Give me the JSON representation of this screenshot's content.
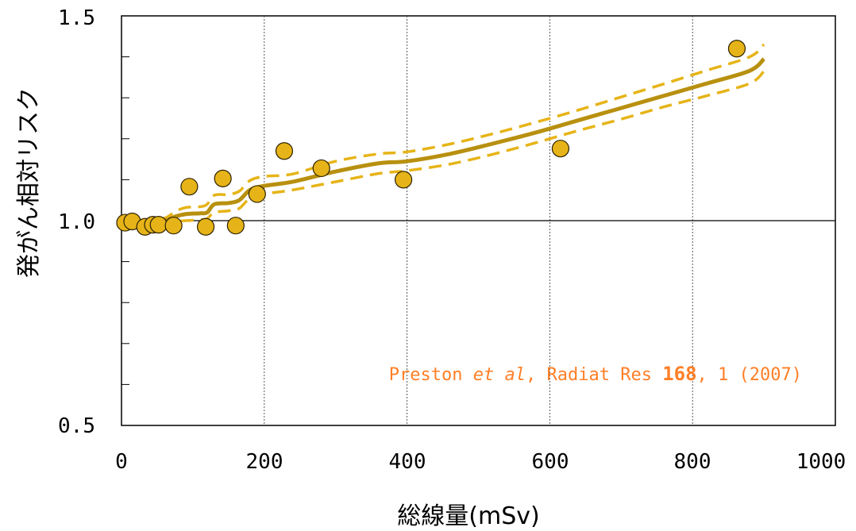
{
  "chart_data": {
    "type": "scatter",
    "xlabel": "総線量(mSv)",
    "ylabel": "発がん相対リスク",
    "xlim": [
      0,
      1000
    ],
    "ylim": [
      0.5,
      1.5
    ],
    "x_ticks": [
      "0",
      "200",
      "400",
      "600",
      "800",
      "1000"
    ],
    "y_ticks": [
      "0.5",
      "1.0",
      "1.5"
    ],
    "y_minor_ticks": [
      0.6,
      0.7,
      0.8,
      0.9,
      1.1,
      1.2,
      1.3,
      1.4
    ],
    "grid": "vertical dashed at 200, 400, 600, 800",
    "reference_line": 1.0,
    "points": {
      "x": [
        5,
        15,
        33,
        44,
        52,
        73,
        95,
        118,
        142,
        160,
        190,
        228,
        280,
        395,
        615,
        862
      ],
      "y": [
        0.995,
        0.998,
        0.985,
        0.99,
        0.99,
        0.988,
        1.083,
        0.985,
        1.103,
        0.988,
        1.065,
        1.17,
        1.128,
        1.1,
        1.176,
        1.42
      ]
    },
    "fit": {
      "x": [
        0,
        30,
        60,
        75,
        90,
        110,
        120,
        130,
        150,
        165,
        180,
        200,
        240,
        300,
        360,
        400,
        460,
        520,
        580,
        640,
        700,
        760,
        820,
        880,
        900
      ],
      "y": [
        0.995,
        0.997,
        1.0,
        1.01,
        1.016,
        1.018,
        1.02,
        1.04,
        1.043,
        1.05,
        1.075,
        1.085,
        1.095,
        1.12,
        1.14,
        1.145,
        1.163,
        1.188,
        1.215,
        1.245,
        1.275,
        1.305,
        1.335,
        1.366,
        1.395
      ]
    },
    "ci_upper": {
      "x": [
        0,
        30,
        60,
        75,
        90,
        110,
        120,
        130,
        150,
        165,
        180,
        200,
        240,
        300,
        360,
        400,
        460,
        520,
        580,
        640,
        700,
        760,
        820,
        880,
        900
      ],
      "y": [
        1.0,
        1.002,
        1.006,
        1.022,
        1.032,
        1.034,
        1.04,
        1.062,
        1.064,
        1.072,
        1.098,
        1.108,
        1.114,
        1.145,
        1.163,
        1.168,
        1.187,
        1.212,
        1.24,
        1.27,
        1.302,
        1.334,
        1.367,
        1.4,
        1.43
      ]
    },
    "ci_lower": {
      "x": [
        0,
        30,
        60,
        75,
        90,
        110,
        120,
        130,
        150,
        165,
        180,
        200,
        240,
        300,
        360,
        400,
        460,
        520,
        580,
        640,
        700,
        760,
        820,
        880,
        900
      ],
      "y": [
        0.99,
        0.992,
        0.995,
        0.998,
        1.0,
        1.002,
        1.005,
        1.02,
        1.024,
        1.03,
        1.055,
        1.065,
        1.075,
        1.095,
        1.115,
        1.122,
        1.138,
        1.162,
        1.19,
        1.22,
        1.248,
        1.278,
        1.305,
        1.335,
        1.365
      ]
    },
    "annotation": {
      "prefix": "Preston ",
      "italic": "et al",
      "middle": ", Radiat Res ",
      "bold": "168",
      "suffix": ", 1 (2007)"
    },
    "colors": {
      "point_fill": "#e6b418",
      "point_stroke": "#2b2000",
      "fit_line": "#b8900f",
      "ci_line": "#e6b418",
      "annotation": "#ff7f27"
    }
  }
}
